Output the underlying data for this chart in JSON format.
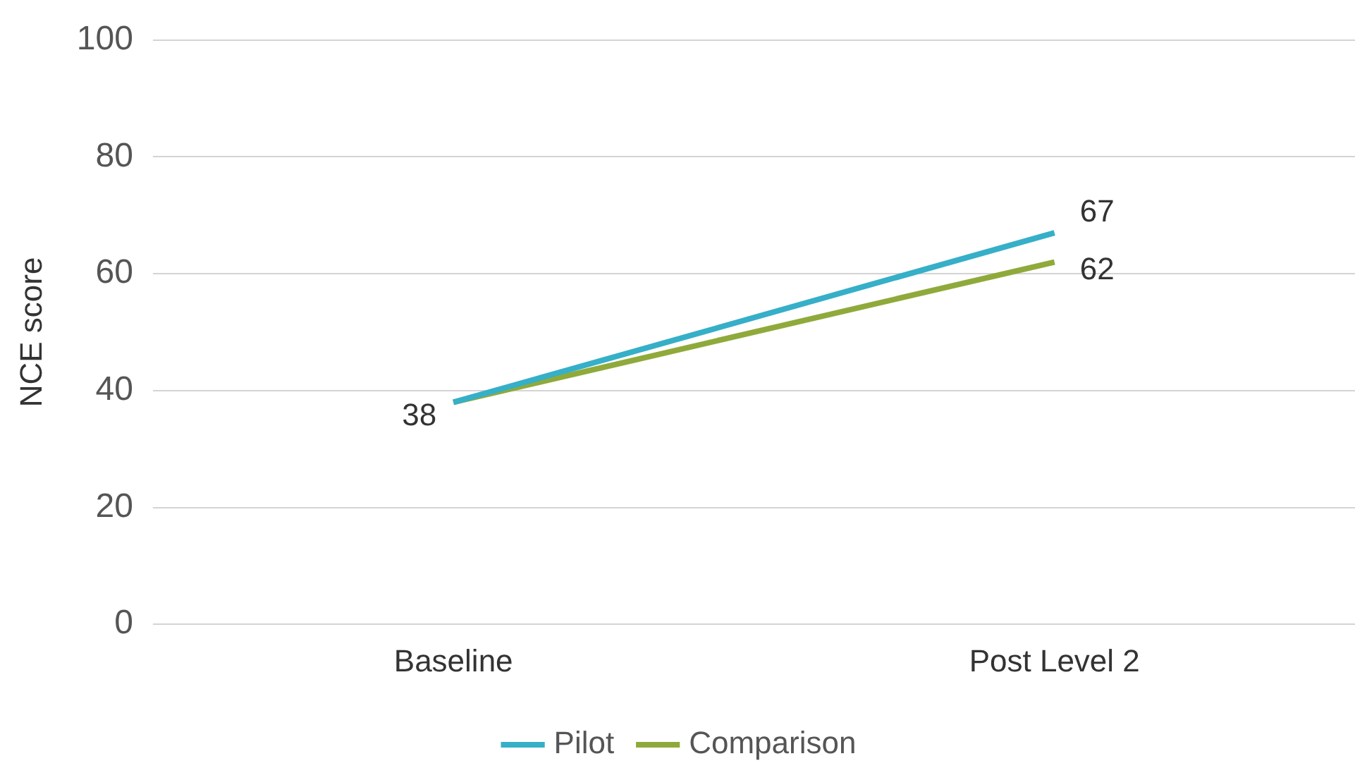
{
  "chart_data": {
    "type": "line",
    "ylabel": "NCE score",
    "categories": [
      "Baseline",
      "Post Level 2"
    ],
    "series": [
      {
        "name": "Pilot",
        "color": "#36afc8",
        "values": [
          38,
          67
        ],
        "value_labels": [
          null,
          "67"
        ]
      },
      {
        "name": "Comparison",
        "color": "#8faa3b",
        "values": [
          38,
          62
        ],
        "value_labels": [
          "38",
          "62"
        ]
      }
    ],
    "ylim": [
      0,
      100
    ],
    "yticks": [
      0,
      20,
      40,
      60,
      80,
      100
    ],
    "grid": "y",
    "legend": "bottom",
    "marker": "none",
    "line_style": "solid"
  }
}
